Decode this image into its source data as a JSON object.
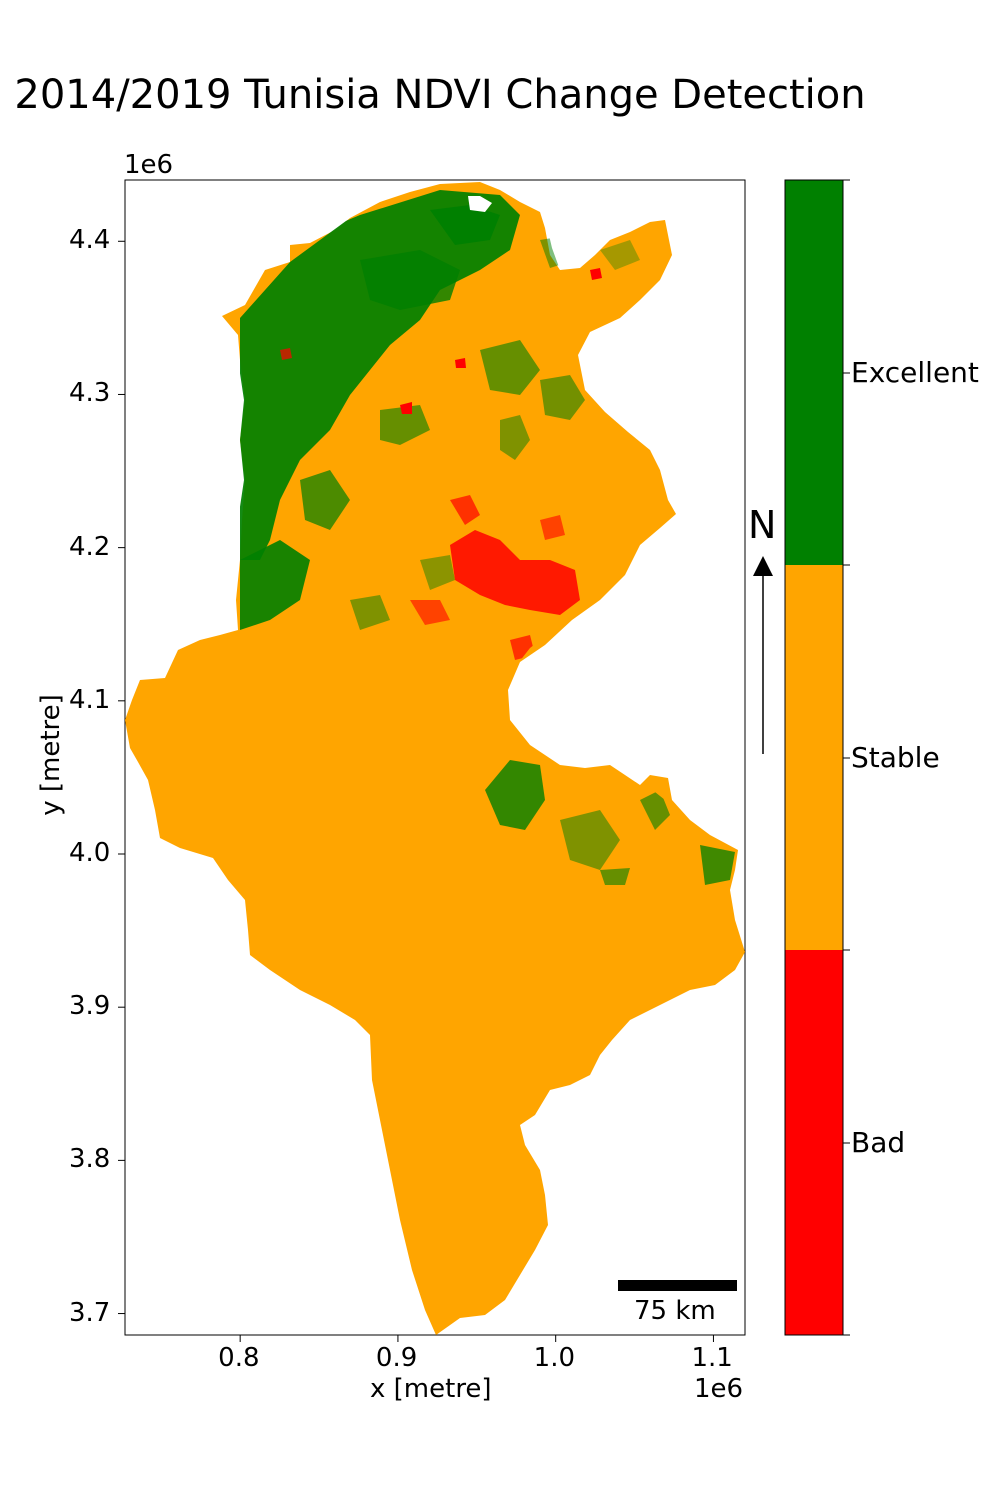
{
  "title": "2014/2019 Tunisia NDVI Change Detection",
  "axes": {
    "xlabel": "x [metre]",
    "ylabel": "y [metre]",
    "x_exponent": "1e6",
    "y_exponent": "1e6",
    "xlim": [
      0.727,
      1.12
    ],
    "ylim": [
      3.686,
      4.44
    ],
    "xticks": [
      "0.8",
      "0.9",
      "1.0",
      "1.1"
    ],
    "yticks": [
      "4.4",
      "4.3",
      "4.2",
      "4.1",
      "4.0",
      "3.9",
      "3.8",
      "3.7"
    ]
  },
  "colorbar": {
    "classes": [
      {
        "label": "Excellent",
        "color": "#008000"
      },
      {
        "label": "Stable",
        "color": "#FFA500"
      },
      {
        "label": "Bad",
        "color": "#FF0000"
      }
    ]
  },
  "north_arrow": {
    "label": "N"
  },
  "scale_bar": {
    "label": "75 km"
  },
  "colors": {
    "excellent": "#008000",
    "stable": "#FFA500",
    "bad": "#FF0000"
  }
}
